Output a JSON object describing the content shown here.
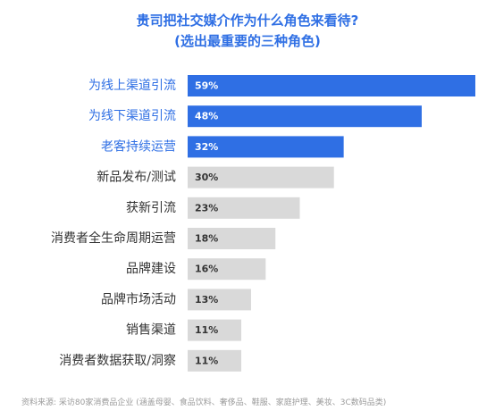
{
  "chart_data": {
    "type": "bar",
    "orientation": "horizontal",
    "title": "贵司把社交媒介作为什么角色来看待?",
    "subtitle": "(选出最重要的三种角色)",
    "categories": [
      "为线上渠道引流",
      "为线下渠道引流",
      "老客持续运营",
      "新品发布/测试",
      "获新引流",
      "消费者全生命周期运营",
      "品牌建设",
      "品牌市场活动",
      "销售渠道",
      "消费者数据获取/洞察"
    ],
    "values": [
      59,
      48,
      32,
      30,
      23,
      18,
      16,
      13,
      11,
      11
    ],
    "data_labels": [
      "59%",
      "48%",
      "32%",
      "30%",
      "23%",
      "18%",
      "16%",
      "13%",
      "11%",
      "11%"
    ],
    "highlighted": [
      true,
      true,
      true,
      false,
      false,
      false,
      false,
      false,
      false,
      false
    ],
    "xlim": [
      0,
      59
    ],
    "grid": false,
    "legend": "none",
    "colors": {
      "highlight_bar": "#2f6fe4",
      "other_bar": "#d9d9d9",
      "highlight_text": "#2f6fe4",
      "other_text": "#333333",
      "highlight_value_text": "#ffffff",
      "other_value_text": "#333333"
    }
  },
  "source_note": "资料来源: 采访80家消费品企业 (涵盖母婴、食品饮料、奢侈品、鞋服、家庭护理、美妆、3C数码品类)"
}
